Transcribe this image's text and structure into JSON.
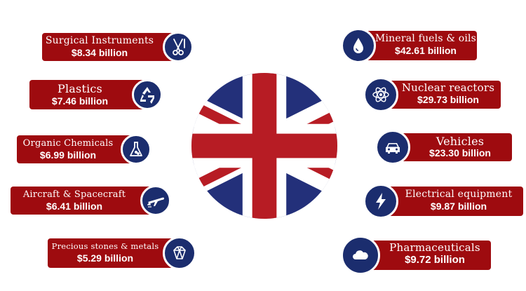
{
  "left_items": [
    {
      "name": "Surgical Instruments",
      "value": "$8.34 billion",
      "icon": "surgical-scissors-icon"
    },
    {
      "name": "Plastics",
      "value": "$7.46 billion",
      "icon": "recycle-icon"
    },
    {
      "name": "Organic Chemicals",
      "value": "$6.99 billion",
      "icon": "flask-icon"
    },
    {
      "name": "Aircraft & Spacecraft",
      "value": "$6.41 billion",
      "icon": "airplane-icon"
    },
    {
      "name": "Precious stones & metals",
      "value": "$5.29 billion",
      "icon": "gemstone-icon"
    }
  ],
  "right_items": [
    {
      "name": "Mineral fuels & oils",
      "value": "$42.61 billion",
      "icon": "oil-drop-icon"
    },
    {
      "name": "Nuclear reactors",
      "value": "$29.73 billion",
      "icon": "atom-icon"
    },
    {
      "name": "Vehicles",
      "value": "$23.30 billion",
      "icon": "car-icon"
    },
    {
      "name": "Electrical equipment",
      "value": "$9.87 billion",
      "icon": "lightning-icon"
    },
    {
      "name": "Pharmaceuticals",
      "value": "$9.72 billion",
      "icon": "cloud-icon"
    }
  ],
  "colors": {
    "label_bg": "#9e0b0f",
    "icon_bg": "#1b2d6e",
    "flag_blue": "#23307a",
    "flag_red": "#b71c24"
  }
}
